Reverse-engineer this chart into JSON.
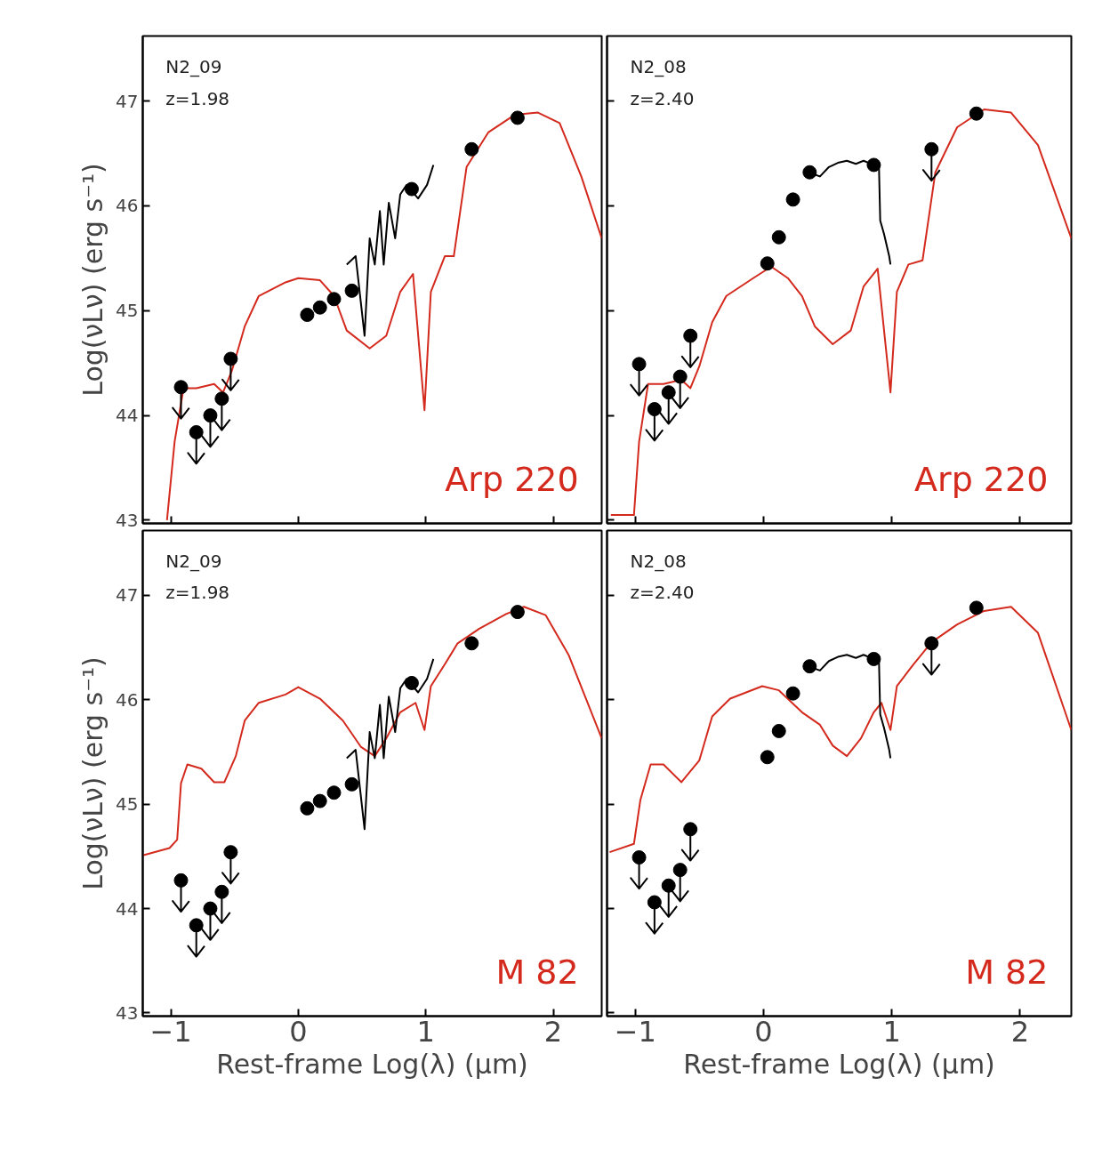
{
  "chart_data": [
    {
      "type": "line",
      "ylabel": "Log(νLν) (erg s⁻¹)",
      "xlim": [
        -1.22,
        2.38
      ],
      "ylim": [
        42.97,
        47.62
      ],
      "xticks": [
        -1,
        0,
        1,
        2
      ],
      "yticks": [
        43,
        44,
        45,
        46,
        47
      ],
      "tick_labels": "y",
      "grid": false,
      "legend": false,
      "annotations": [
        "N2_09",
        "z=1.98"
      ],
      "series": [
        {
          "name": "Arp 220",
          "type": "line",
          "color": "#d42a1e",
          "x": [
            -1.03,
            -0.97,
            -0.9,
            -0.8,
            -0.66,
            -0.59,
            -0.52,
            -0.42,
            -0.31,
            -0.1,
            0,
            0.17,
            0.28,
            0.38,
            0.56,
            0.69,
            0.8,
            0.9,
            0.99,
            1.04,
            1.15,
            1.22,
            1.32,
            1.49,
            1.7,
            1.88,
            2.05,
            2.22,
            2.38
          ],
          "values": [
            43.0,
            43.75,
            44.26,
            44.26,
            44.3,
            44.22,
            44.43,
            44.85,
            45.14,
            45.27,
            45.31,
            45.29,
            45.14,
            44.81,
            44.64,
            44.76,
            45.18,
            45.35,
            44.05,
            45.18,
            45.52,
            45.52,
            46.37,
            46.7,
            46.87,
            46.89,
            46.79,
            46.28,
            45.69
          ]
        },
        {
          "color": "#000000",
          "x": [
            0.38,
            0.45,
            0.52,
            0.56,
            0.6,
            0.64,
            0.67,
            0.71,
            0.76,
            0.8,
            0.85,
            0.94,
            1.01,
            1.06
          ],
          "values": [
            45.44,
            45.52,
            44.76,
            45.69,
            45.44,
            45.95,
            45.44,
            46.03,
            45.69,
            46.11,
            46.2,
            46.07,
            46.2,
            46.39
          ]
        },
        {
          "type": "scatter",
          "marker": "circle",
          "color": "#000000",
          "x": [
            0.07,
            0.17,
            0.28,
            0.42,
            0.89,
            1.36,
            1.72
          ],
          "values": [
            44.96,
            45.03,
            45.11,
            45.19,
            46.16,
            46.54,
            46.84
          ]
        },
        {
          "type": "scatter",
          "marker": "circle",
          "color": "#000000",
          "x": [
            -0.92,
            -0.8,
            -0.69,
            -0.6,
            -0.53
          ],
          "values": [
            44.27,
            43.84,
            44.0,
            44.16,
            44.54
          ],
          "errors": [
            [
              43.97,
              44.27
            ],
            [
              43.54,
              43.84
            ],
            [
              43.7,
              44.0
            ],
            [
              43.86,
              44.16
            ],
            [
              44.24,
              44.54
            ]
          ]
        }
      ]
    },
    {
      "type": "line",
      "xlim": [
        -1.22,
        2.4
      ],
      "ylim": [
        42.97,
        47.62
      ],
      "xticks": [
        -1,
        0,
        1,
        2
      ],
      "yticks": [
        43,
        44,
        45,
        46,
        47
      ],
      "tick_labels": false,
      "grid": false,
      "legend": false,
      "annotations": [
        "N2_08",
        "z=2.40"
      ],
      "series": [
        {
          "name": "Arp 220",
          "type": "line",
          "color": "#d42a1e",
          "x": [
            -1.19,
            -1.01,
            -0.97,
            -0.9,
            -0.78,
            -0.64,
            -0.57,
            -0.5,
            -0.4,
            -0.29,
            -0.08,
            0.06,
            0.19,
            0.3,
            0.4,
            0.54,
            0.68,
            0.78,
            0.89,
            0.99,
            1.04,
            1.13,
            1.24,
            1.34,
            1.51,
            1.72,
            1.93,
            2.14,
            2.4
          ],
          "values": [
            43.05,
            43.05,
            43.75,
            44.3,
            44.3,
            44.34,
            44.26,
            44.47,
            44.89,
            45.14,
            45.31,
            45.42,
            45.31,
            45.14,
            44.85,
            44.68,
            44.81,
            45.23,
            45.4,
            44.22,
            45.18,
            45.44,
            45.48,
            46.32,
            46.75,
            46.92,
            46.89,
            46.58,
            45.69
          ]
        },
        {
          "color": "#000000",
          "x": [
            0.35,
            0.44,
            0.51,
            0.58,
            0.65,
            0.72,
            0.78,
            0.88,
            0.9,
            0.91,
            0.94,
            0.98,
            0.99
          ],
          "values": [
            46.32,
            46.28,
            46.37,
            46.41,
            46.43,
            46.4,
            46.43,
            46.38,
            46.39,
            45.86,
            45.73,
            45.52,
            45.44
          ]
        },
        {
          "type": "scatter",
          "marker": "circle",
          "color": "#000000",
          "x": [
            0.03,
            0.12,
            0.23,
            0.36,
            0.86,
            1.66
          ],
          "values": [
            45.45,
            45.7,
            46.06,
            46.32,
            46.39,
            46.88
          ]
        },
        {
          "type": "scatter",
          "marker": "circle",
          "color": "#000000",
          "x": [
            -0.97,
            -0.85,
            -0.74,
            -0.65,
            -0.57,
            1.31
          ],
          "values": [
            44.49,
            44.06,
            44.22,
            44.37,
            44.76,
            46.54
          ],
          "errors": [
            [
              44.19,
              44.49
            ],
            [
              43.76,
              44.06
            ],
            [
              43.92,
              44.22
            ],
            [
              44.07,
              44.37
            ],
            [
              44.46,
              44.76
            ],
            [
              46.24,
              46.54
            ]
          ]
        }
      ]
    },
    {
      "type": "line",
      "xlabel": "Rest-frame Log(λ) (μm)",
      "ylabel": "Log(νLν) (erg s⁻¹)",
      "xlim": [
        -1.22,
        2.38
      ],
      "ylim": [
        42.97,
        47.62
      ],
      "xticks": [
        -1,
        0,
        1,
        2
      ],
      "yticks": [
        43,
        44,
        45,
        46,
        47
      ],
      "grid": false,
      "legend": false,
      "annotations": [
        "N2_09",
        "z=1.98"
      ],
      "series": [
        {
          "name": "M 82",
          "type": "line",
          "color": "#d42a1e",
          "x": [
            -1.22,
            -1.01,
            -0.95,
            -0.92,
            -0.87,
            -0.76,
            -0.66,
            -0.58,
            -0.49,
            -0.42,
            -0.31,
            -0.1,
            0,
            0.17,
            0.35,
            0.49,
            0.6,
            0.69,
            0.8,
            0.92,
            0.99,
            1.04,
            1.15,
            1.25,
            1.42,
            1.63,
            1.77,
            1.94,
            2.12,
            2.38
          ],
          "values": [
            44.51,
            44.58,
            44.66,
            45.2,
            45.38,
            45.34,
            45.21,
            45.21,
            45.46,
            45.8,
            45.97,
            46.05,
            46.12,
            46.01,
            45.8,
            45.55,
            45.46,
            45.63,
            45.88,
            45.97,
            45.71,
            46.13,
            46.34,
            46.54,
            46.68,
            46.82,
            46.89,
            46.81,
            46.43,
            45.63
          ]
        },
        {
          "color": "#000000",
          "x": [
            0.38,
            0.45,
            0.52,
            0.56,
            0.6,
            0.64,
            0.67,
            0.71,
            0.76,
            0.8,
            0.85,
            0.94,
            1.01,
            1.06
          ],
          "values": [
            45.44,
            45.52,
            44.76,
            45.69,
            45.44,
            45.95,
            45.44,
            46.03,
            45.69,
            46.11,
            46.2,
            46.07,
            46.2,
            46.39
          ]
        },
        {
          "type": "scatter",
          "marker": "circle",
          "color": "#000000",
          "x": [
            0.07,
            0.17,
            0.28,
            0.42,
            0.89,
            1.36,
            1.72
          ],
          "values": [
            44.96,
            45.03,
            45.11,
            45.19,
            46.16,
            46.54,
            46.84
          ]
        },
        {
          "type": "scatter",
          "marker": "circle",
          "color": "#000000",
          "x": [
            -0.92,
            -0.8,
            -0.69,
            -0.6,
            -0.53
          ],
          "values": [
            44.27,
            43.84,
            44.0,
            44.16,
            44.54
          ],
          "errors": [
            [
              43.97,
              44.27
            ],
            [
              43.54,
              43.84
            ],
            [
              43.7,
              44.0
            ],
            [
              43.86,
              44.16
            ],
            [
              44.24,
              44.54
            ]
          ]
        }
      ]
    },
    {
      "type": "line",
      "xlabel": "Rest-frame Log(λ) (μm)",
      "xlim": [
        -1.22,
        2.4
      ],
      "ylim": [
        42.97,
        47.62
      ],
      "xticks": [
        -1,
        0,
        1,
        2
      ],
      "yticks": [
        43,
        44,
        45,
        46,
        47
      ],
      "tick_labels": "x",
      "grid": false,
      "legend": false,
      "annotations": [
        "N2_08",
        "z=2.40"
      ],
      "series": [
        {
          "name": "M 82",
          "type": "line",
          "color": "#d42a1e",
          "x": [
            -1.2,
            -1.01,
            -0.96,
            -0.88,
            -0.78,
            -0.64,
            -0.5,
            -0.4,
            -0.26,
            -0.01,
            0.12,
            0.3,
            0.44,
            0.54,
            0.65,
            0.76,
            0.86,
            0.92,
            0.99,
            1.04,
            1.17,
            1.31,
            1.51,
            1.72,
            1.93,
            2.14,
            2.4
          ],
          "values": [
            44.54,
            44.62,
            45.04,
            45.38,
            45.38,
            45.21,
            45.42,
            45.84,
            46.01,
            46.13,
            46.09,
            45.88,
            45.76,
            45.56,
            45.46,
            45.63,
            45.88,
            45.97,
            45.71,
            46.13,
            46.34,
            46.55,
            46.72,
            46.85,
            46.89,
            46.64,
            45.71
          ]
        },
        {
          "color": "#000000",
          "x": [
            0.35,
            0.44,
            0.51,
            0.58,
            0.65,
            0.72,
            0.78,
            0.88,
            0.9,
            0.91,
            0.94,
            0.98,
            0.99
          ],
          "values": [
            46.32,
            46.28,
            46.37,
            46.41,
            46.43,
            46.4,
            46.43,
            46.38,
            46.39,
            45.86,
            45.73,
            45.52,
            45.44
          ]
        },
        {
          "type": "scatter",
          "marker": "circle",
          "color": "#000000",
          "x": [
            0.03,
            0.12,
            0.23,
            0.36,
            0.86,
            1.66
          ],
          "values": [
            45.45,
            45.7,
            46.06,
            46.32,
            46.39,
            46.88
          ]
        },
        {
          "type": "scatter",
          "marker": "circle",
          "color": "#000000",
          "x": [
            -0.97,
            -0.85,
            -0.74,
            -0.65,
            -0.57,
            1.31
          ],
          "values": [
            44.49,
            44.06,
            44.22,
            44.37,
            44.76,
            46.54
          ],
          "errors": [
            [
              44.19,
              44.49
            ],
            [
              43.76,
              44.06
            ],
            [
              43.92,
              44.22
            ],
            [
              44.07,
              44.37
            ],
            [
              44.46,
              44.76
            ],
            [
              46.24,
              46.54
            ]
          ]
        }
      ]
    }
  ]
}
